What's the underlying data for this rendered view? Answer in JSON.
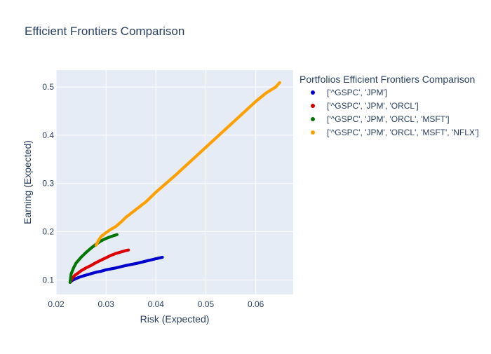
{
  "chart_data": {
    "type": "scatter",
    "title": "Efficient Frontiers Comparison",
    "xlabel": "Risk (Expected)",
    "ylabel": "Earning (Expected)",
    "xlim": [
      0.02,
      0.0675
    ],
    "ylim": [
      0.07,
      0.535
    ],
    "xticks": [
      0.02,
      0.03,
      0.04,
      0.05,
      0.06
    ],
    "xtick_labels": [
      "0.02",
      "0.03",
      "0.04",
      "0.05",
      "0.06"
    ],
    "yticks": [
      0.1,
      0.2,
      0.3,
      0.4,
      0.5
    ],
    "ytick_labels": [
      "0.1",
      "0.2",
      "0.3",
      "0.4",
      "0.5"
    ],
    "grid": true,
    "legend": {
      "title": "Portfolios Efficient Frontiers Comparison",
      "placement": "right"
    },
    "series": [
      {
        "name": "['^GSPC', 'JPM']",
        "color": "#0000cc",
        "points": [
          [
            0.0228,
            0.095
          ],
          [
            0.0232,
            0.099
          ],
          [
            0.024,
            0.103
          ],
          [
            0.025,
            0.107
          ],
          [
            0.026,
            0.11
          ],
          [
            0.027,
            0.113
          ],
          [
            0.028,
            0.116
          ],
          [
            0.029,
            0.118
          ],
          [
            0.03,
            0.121
          ],
          [
            0.032,
            0.125
          ],
          [
            0.034,
            0.13
          ],
          [
            0.036,
            0.134
          ],
          [
            0.038,
            0.139
          ],
          [
            0.04,
            0.144
          ],
          [
            0.0413,
            0.147
          ]
        ]
      },
      {
        "name": "['^GSPC', 'JPM', 'ORCL']",
        "color": "#dd0000",
        "points": [
          [
            0.0228,
            0.095
          ],
          [
            0.0232,
            0.103
          ],
          [
            0.0238,
            0.11
          ],
          [
            0.0245,
            0.115
          ],
          [
            0.025,
            0.119
          ],
          [
            0.026,
            0.125
          ],
          [
            0.027,
            0.13
          ],
          [
            0.028,
            0.136
          ],
          [
            0.029,
            0.141
          ],
          [
            0.03,
            0.146
          ],
          [
            0.031,
            0.151
          ],
          [
            0.032,
            0.155
          ],
          [
            0.033,
            0.158
          ],
          [
            0.034,
            0.161
          ],
          [
            0.0345,
            0.162
          ]
        ]
      },
      {
        "name": "['^GSPC', 'JPM', 'ORCL', 'MSFT']",
        "color": "#007700",
        "points": [
          [
            0.0228,
            0.095
          ],
          [
            0.023,
            0.112
          ],
          [
            0.0235,
            0.125
          ],
          [
            0.024,
            0.135
          ],
          [
            0.025,
            0.147
          ],
          [
            0.026,
            0.157
          ],
          [
            0.027,
            0.166
          ],
          [
            0.028,
            0.174
          ],
          [
            0.029,
            0.181
          ],
          [
            0.03,
            0.186
          ],
          [
            0.031,
            0.19
          ],
          [
            0.0322,
            0.194
          ]
        ]
      },
      {
        "name": "['^GSPC', 'JPM', 'ORCL', 'MSFT', 'NFLX']",
        "color": "#ffa000",
        "points": [
          [
            0.028,
            0.172
          ],
          [
            0.0285,
            0.182
          ],
          [
            0.029,
            0.19
          ],
          [
            0.03,
            0.198
          ],
          [
            0.031,
            0.205
          ],
          [
            0.032,
            0.211
          ],
          [
            0.033,
            0.22
          ],
          [
            0.034,
            0.23
          ],
          [
            0.035,
            0.238
          ],
          [
            0.036,
            0.246
          ],
          [
            0.037,
            0.254
          ],
          [
            0.038,
            0.262
          ],
          [
            0.039,
            0.272
          ],
          [
            0.04,
            0.282
          ],
          [
            0.042,
            0.3
          ],
          [
            0.044,
            0.318
          ],
          [
            0.046,
            0.337
          ],
          [
            0.048,
            0.356
          ],
          [
            0.05,
            0.375
          ],
          [
            0.052,
            0.394
          ],
          [
            0.054,
            0.413
          ],
          [
            0.056,
            0.432
          ],
          [
            0.058,
            0.451
          ],
          [
            0.06,
            0.47
          ],
          [
            0.062,
            0.487
          ],
          [
            0.064,
            0.5
          ],
          [
            0.0648,
            0.509
          ]
        ]
      }
    ]
  }
}
